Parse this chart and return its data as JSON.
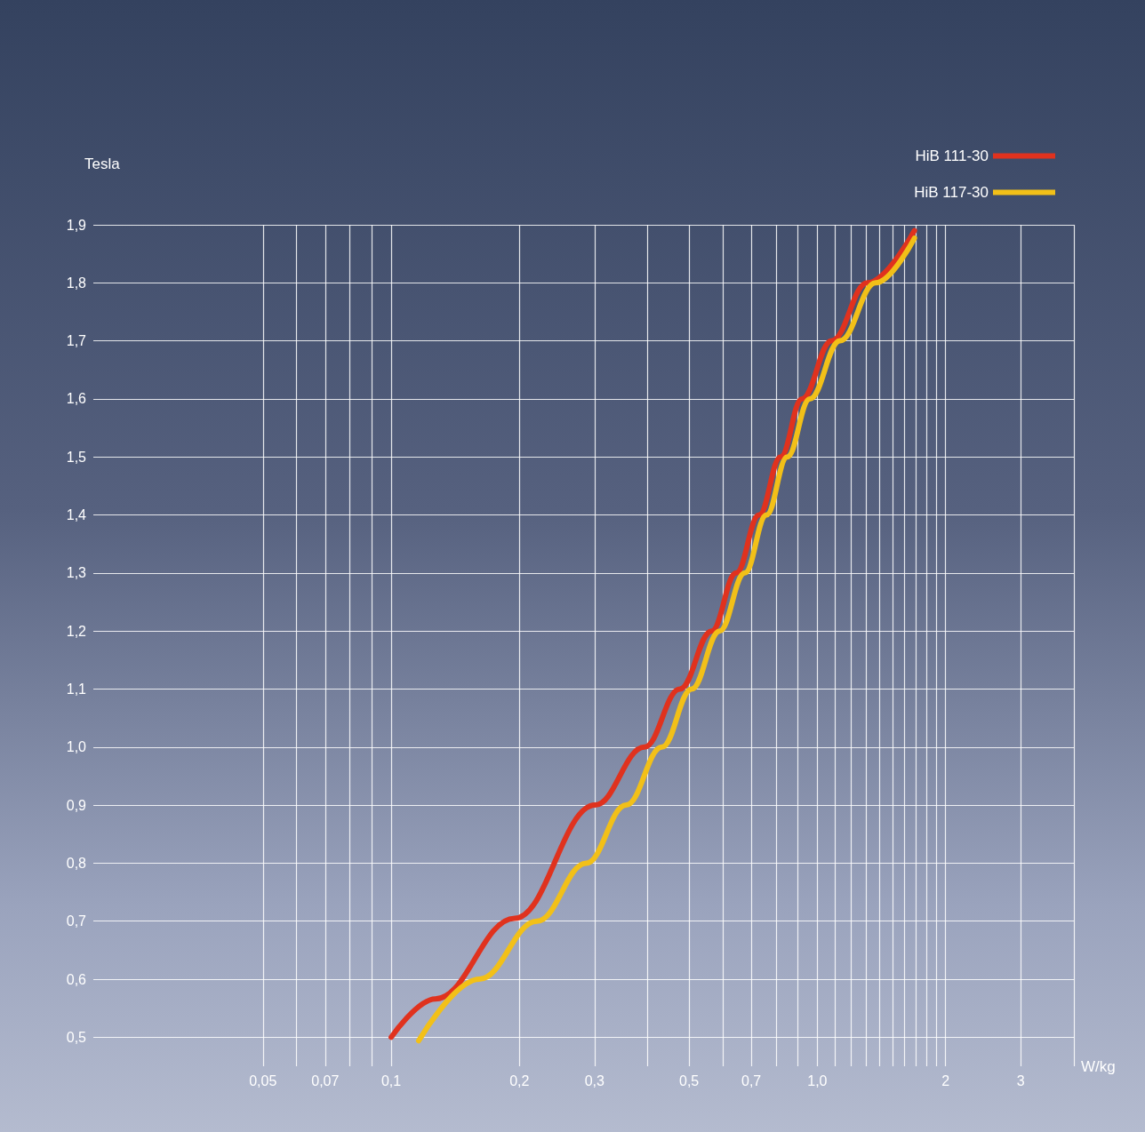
{
  "chart_data": {
    "type": "line",
    "xlabel": "W/kg",
    "ylabel": "Tesla",
    "log": "x",
    "grid": true,
    "legend": "top right",
    "marker": "none",
    "line_style": "solid",
    "xlim": [
      0.02,
      4
    ],
    "ylim": [
      0.45,
      1.9
    ],
    "xticks": [
      {
        "value": 0.05,
        "label": "0,05"
      },
      {
        "value": 0.06,
        "label": null
      },
      {
        "value": 0.07,
        "label": "0,07"
      },
      {
        "value": 0.08,
        "label": null
      },
      {
        "value": 0.09,
        "label": null
      },
      {
        "value": 0.1,
        "label": "0,1"
      },
      {
        "value": 0.2,
        "label": "0,2"
      },
      {
        "value": 0.3,
        "label": "0,3"
      },
      {
        "value": 0.4,
        "label": null
      },
      {
        "value": 0.5,
        "label": "0,5"
      },
      {
        "value": 0.6,
        "label": null
      },
      {
        "value": 0.7,
        "label": "0,7"
      },
      {
        "value": 0.8,
        "label": null
      },
      {
        "value": 0.9,
        "label": null
      },
      {
        "value": 1.0,
        "label": "1,0"
      },
      {
        "value": 1.1,
        "label": null
      },
      {
        "value": 1.2,
        "label": null
      },
      {
        "value": 1.3,
        "label": null
      },
      {
        "value": 1.4,
        "label": null
      },
      {
        "value": 1.5,
        "label": null
      },
      {
        "value": 1.6,
        "label": null
      },
      {
        "value": 1.7,
        "label": null
      },
      {
        "value": 1.8,
        "label": null
      },
      {
        "value": 1.9,
        "label": null
      },
      {
        "value": 2,
        "label": "2"
      },
      {
        "value": 3,
        "label": "3"
      },
      {
        "value": 4,
        "label": null
      }
    ],
    "yticks": [
      {
        "value": 0.5,
        "label": "0,5"
      },
      {
        "value": 0.6,
        "label": "0,6"
      },
      {
        "value": 0.7,
        "label": "0,7"
      },
      {
        "value": 0.8,
        "label": "0,8"
      },
      {
        "value": 0.9,
        "label": "0,9"
      },
      {
        "value": 1.0,
        "label": "1,0"
      },
      {
        "value": 1.1,
        "label": "1,1"
      },
      {
        "value": 1.2,
        "label": "1,2"
      },
      {
        "value": 1.3,
        "label": "1,3"
      },
      {
        "value": 1.4,
        "label": "1,4"
      },
      {
        "value": 1.5,
        "label": "1,5"
      },
      {
        "value": 1.6,
        "label": "1,6"
      },
      {
        "value": 1.7,
        "label": "1,7"
      },
      {
        "value": 1.8,
        "label": "1,8"
      },
      {
        "value": 1.9,
        "label": "1,9"
      }
    ],
    "series": [
      {
        "name": "HiB 111-30",
        "color": "#e0321e",
        "x": [
          0.1,
          0.127,
          0.195,
          0.301,
          0.393,
          0.476,
          0.565,
          0.645,
          0.73,
          0.82,
          0.92,
          1.08,
          1.31,
          1.69
        ],
        "values": [
          0.5,
          0.566,
          0.705,
          0.9,
          1.0,
          1.1,
          1.2,
          1.3,
          1.4,
          1.5,
          1.6,
          1.7,
          1.8,
          1.89
        ]
      },
      {
        "name": "HiB 117-30",
        "color": "#f2c018",
        "x": [
          0.116,
          0.161,
          0.22,
          0.287,
          0.356,
          0.432,
          0.507,
          0.59,
          0.676,
          0.76,
          0.85,
          0.96,
          1.13,
          1.37,
          1.69
        ],
        "values": [
          0.494,
          0.6,
          0.7,
          0.8,
          0.9,
          1.0,
          1.1,
          1.2,
          1.3,
          1.4,
          1.5,
          1.6,
          1.7,
          1.8,
          1.877
        ]
      }
    ]
  }
}
